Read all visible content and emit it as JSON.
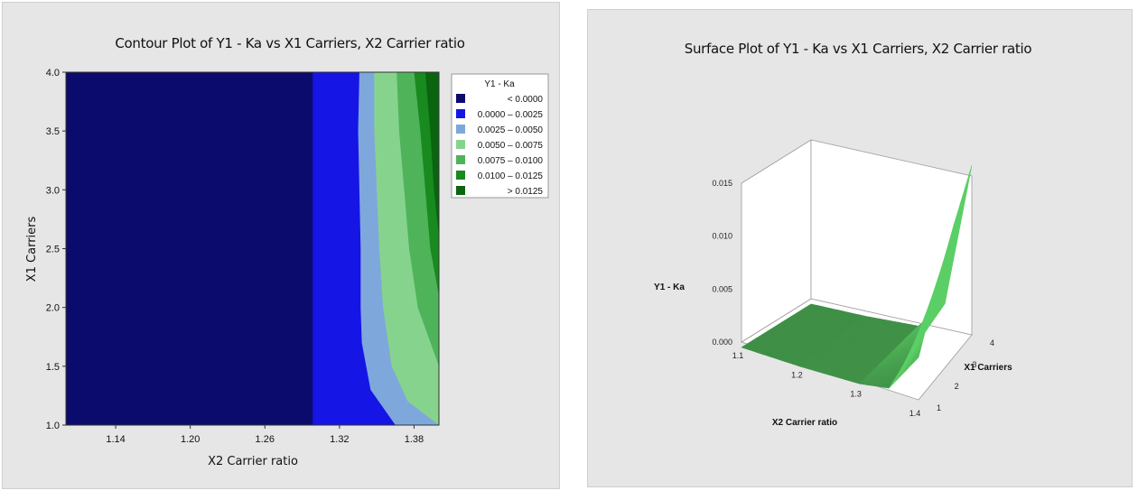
{
  "chart_data": [
    {
      "type": "heatmap",
      "subtype": "contour",
      "title": "Contour Plot of Y1 - Ka vs X1 Carriers, X2 Carrier ratio",
      "xlabel": "X2 Carrier ratio",
      "ylabel": "X1 Carriers",
      "xlim": [
        1.1,
        1.4
      ],
      "ylim": [
        1.0,
        4.0
      ],
      "x_ticks": [
        "1.14",
        "1.20",
        "1.26",
        "1.32",
        "1.38"
      ],
      "x_tick_values": [
        1.14,
        1.2,
        1.26,
        1.32,
        1.38
      ],
      "y_ticks": [
        "1.0",
        "1.5",
        "2.0",
        "2.5",
        "3.0",
        "3.5",
        "4.0"
      ],
      "y_tick_values": [
        1.0,
        1.5,
        2.0,
        2.5,
        3.0,
        3.5,
        4.0
      ],
      "legend": {
        "title": "Y1 - Ka",
        "position": "right",
        "entries": [
          {
            "label": "< 0.0000",
            "color": "#0b0b6e"
          },
          {
            "label": "0.0000 – 0.0025",
            "color": "#1515e6"
          },
          {
            "label": "0.0025 – 0.0050",
            "color": "#7ea7dc"
          },
          {
            "label": "0.0050 – 0.0075",
            "color": "#86d38e"
          },
          {
            "label": "0.0075 – 0.0100",
            "color": "#4fb35a"
          },
          {
            "label": "0.0100 – 0.0125",
            "color": "#188a1e"
          },
          {
            "label": "> 0.0125",
            "color": "#0a6410"
          }
        ]
      },
      "level_boundaries": [
        {
          "level": 0.0,
          "points": [
            [
              1.2985,
              1.0
            ],
            [
              1.2985,
              4.0
            ]
          ]
        },
        {
          "level": 0.0025,
          "points": [
            [
              1.365,
              1.0
            ],
            [
              1.345,
              1.3
            ],
            [
              1.338,
              1.7
            ],
            [
              1.337,
              2.0
            ],
            [
              1.337,
              2.5
            ],
            [
              1.336,
              3.0
            ],
            [
              1.335,
              3.5
            ],
            [
              1.336,
              4.0
            ]
          ]
        },
        {
          "level": 0.005,
          "points": [
            [
              1.4,
              1.0
            ],
            [
              1.375,
              1.2
            ],
            [
              1.362,
              1.5
            ],
            [
              1.355,
              2.0
            ],
            [
              1.352,
              2.5
            ],
            [
              1.35,
              3.0
            ],
            [
              1.348,
              3.5
            ],
            [
              1.348,
              4.0
            ]
          ]
        },
        {
          "level": 0.0075,
          "points": [
            [
              1.4,
              1.5
            ],
            [
              1.383,
              2.0
            ],
            [
              1.376,
              2.5
            ],
            [
              1.372,
              3.0
            ],
            [
              1.368,
              3.5
            ],
            [
              1.366,
              4.0
            ]
          ]
        },
        {
          "level": 0.01,
          "points": [
            [
              1.4,
              2.1
            ],
            [
              1.393,
              2.5
            ],
            [
              1.389,
              3.0
            ],
            [
              1.385,
              3.5
            ],
            [
              1.38,
              4.0
            ]
          ]
        },
        {
          "level": 0.0125,
          "points": [
            [
              1.4,
              2.6
            ],
            [
              1.396,
              3.0
            ],
            [
              1.393,
              3.5
            ],
            [
              1.389,
              4.0
            ]
          ]
        }
      ]
    },
    {
      "type": "area",
      "subtype": "surface3d",
      "title": "Surface Plot of Y1 - Ka vs X1 Carriers, X2 Carrier ratio",
      "xlabel": "X2 Carrier ratio",
      "ylabel": "X1 Carriers",
      "zlabel": "Y1 - Ka",
      "xlim": [
        1.1,
        1.4
      ],
      "ylim": [
        1,
        4
      ],
      "zlim": [
        0.0,
        0.015
      ],
      "x_ticks": [
        "1.1",
        "1.2",
        "1.3",
        "1.4"
      ],
      "x_tick_values": [
        1.1,
        1.2,
        1.3,
        1.4
      ],
      "y_ticks": [
        "1",
        "2",
        "3",
        "4"
      ],
      "y_tick_values": [
        1,
        2,
        3,
        4
      ],
      "z_ticks": [
        "0.000",
        "0.005",
        "0.010",
        "0.015"
      ],
      "z_tick_values": [
        0.0,
        0.005,
        0.01,
        0.015
      ],
      "surface_color": "#3f8f46",
      "surface_x": [
        1.1,
        1.2,
        1.3,
        1.35,
        1.4
      ],
      "surface_y": [
        1,
        2,
        3,
        4
      ],
      "surface_z": [
        [
          -0.0005,
          -0.0005,
          -0.0005,
          -0.0005
        ],
        [
          -0.0005,
          -0.0005,
          -0.0005,
          -0.0005
        ],
        [
          -0.0003,
          -0.0003,
          -0.0003,
          -0.0003
        ],
        [
          0.0002,
          0.001,
          0.0018,
          0.0024
        ],
        [
          0.004,
          0.0085,
          0.0125,
          0.016
        ]
      ]
    }
  ]
}
